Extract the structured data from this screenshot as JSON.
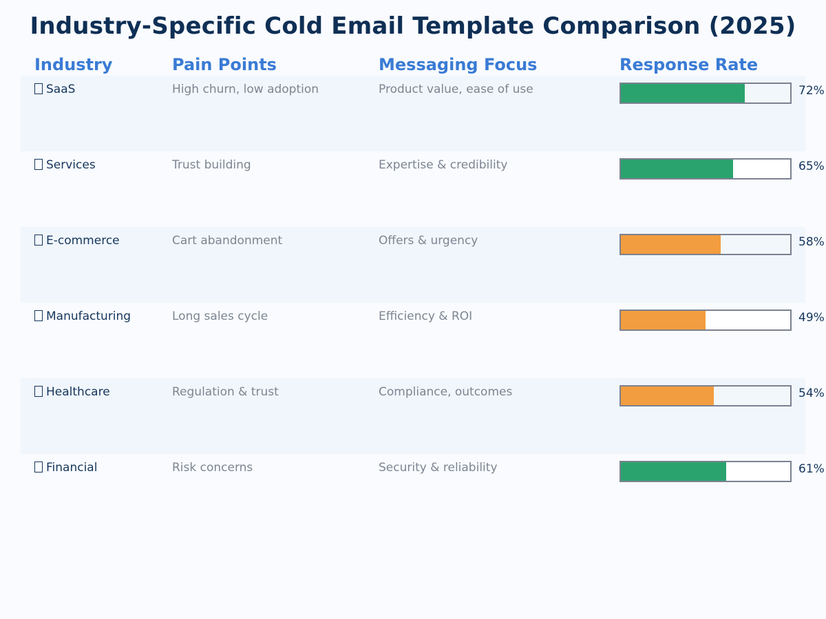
{
  "title": "Industry-Specific Cold Email Template Comparison (2025)",
  "headers": {
    "industry": "Industry",
    "pain": "Pain Points",
    "focus": "Messaging Focus",
    "rate": "Response Rate"
  },
  "colors": {
    "high": "#2ba36e",
    "medium": "#f29d3f"
  },
  "chart_data": {
    "type": "table",
    "title": "Industry-Specific Cold Email Template Comparison (2025)",
    "columns": [
      "Industry",
      "Pain Points",
      "Messaging Focus",
      "Response Rate"
    ],
    "rows": [
      {
        "industry": "SaaS",
        "pain": "High churn, low adoption",
        "focus": "Product value, ease of use",
        "rate": 72,
        "rate_label": "72%",
        "color": "#2ba36e"
      },
      {
        "industry": "Services",
        "pain": "Trust building",
        "focus": "Expertise & credibility",
        "rate": 65,
        "rate_label": "65%",
        "color": "#2ba36e"
      },
      {
        "industry": "E-commerce",
        "pain": "Cart abandonment",
        "focus": "Offers & urgency",
        "rate": 58,
        "rate_label": "58%",
        "color": "#f29d3f"
      },
      {
        "industry": "Manufacturing",
        "pain": "Long sales cycle",
        "focus": "Efficiency & ROI",
        "rate": 49,
        "rate_label": "49%",
        "color": "#f29d3f"
      },
      {
        "industry": "Healthcare",
        "pain": "Regulation & trust",
        "focus": "Compliance, outcomes",
        "rate": 54,
        "rate_label": "54%",
        "color": "#f29d3f"
      },
      {
        "industry": "Financial",
        "pain": "Risk concerns",
        "focus": "Security & reliability",
        "rate": 61,
        "rate_label": "61%",
        "color": "#2ba36e"
      }
    ],
    "rate_range": [
      0,
      100
    ]
  }
}
